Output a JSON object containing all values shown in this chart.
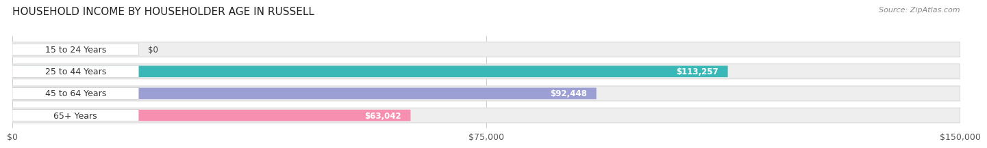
{
  "title": "HOUSEHOLD INCOME BY HOUSEHOLDER AGE IN RUSSELL",
  "source": "Source: ZipAtlas.com",
  "categories": [
    "15 to 24 Years",
    "25 to 44 Years",
    "45 to 64 Years",
    "65+ Years"
  ],
  "values": [
    0,
    113257,
    92448,
    63042
  ],
  "value_labels": [
    "$0",
    "$113,257",
    "$92,448",
    "$63,042"
  ],
  "bar_colors": [
    "#c9a8d4",
    "#3ab8b8",
    "#9b9fd4",
    "#f790b0"
  ],
  "track_color": "#eeeeee",
  "xlim": [
    0,
    150000
  ],
  "xticks": [
    0,
    75000,
    150000
  ],
  "xtick_labels": [
    "$0",
    "$75,000",
    "$150,000"
  ],
  "title_fontsize": 11,
  "source_fontsize": 8,
  "label_fontsize": 9,
  "value_fontsize": 8.5,
  "tick_fontsize": 9,
  "background_color": "#ffffff"
}
